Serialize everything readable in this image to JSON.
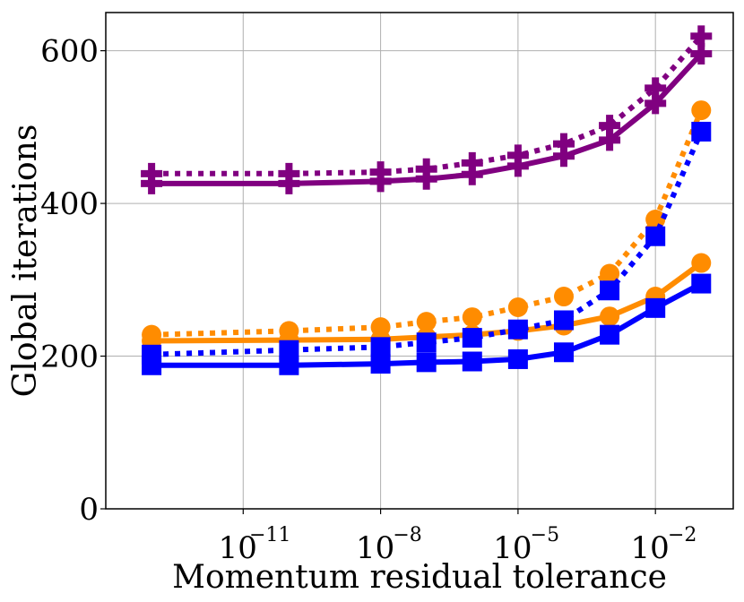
{
  "chart_data": {
    "type": "line",
    "title": "",
    "xlabel": "Momentum residual tolerance",
    "ylabel": "Global iterations",
    "x_scale": "log",
    "xlim": [
      1e-14,
      0.5
    ],
    "ylim": [
      0,
      650
    ],
    "grid": true,
    "x_ticks": [
      {
        "value": 1e-11,
        "base": "10",
        "exp": "−11"
      },
      {
        "value": 1e-08,
        "base": "10",
        "exp": "−8"
      },
      {
        "value": 1e-05,
        "base": "10",
        "exp": "−5"
      },
      {
        "value": 0.01,
        "base": "10",
        "exp": "−2"
      }
    ],
    "y_ticks": [
      "0",
      "200",
      "400",
      "600"
    ],
    "x": [
      1e-13,
      1e-10,
      1e-08,
      1e-07,
      1e-06,
      1e-05,
      0.0001,
      0.001,
      0.01,
      0.1
    ],
    "series": [
      {
        "color": "#800080",
        "style": "solid",
        "marker": "plus",
        "values": [
          426,
          426,
          429,
          432,
          438,
          449,
          462,
          483,
          531,
          596
        ]
      },
      {
        "color": "#800080",
        "style": "dotted",
        "marker": "plus",
        "values": [
          439,
          439,
          441,
          445,
          453,
          463,
          478,
          502,
          551,
          619
        ]
      },
      {
        "color": "#ff8c00",
        "style": "solid",
        "marker": "circle",
        "values": [
          220,
          221,
          222,
          225,
          228,
          233,
          240,
          252,
          278,
          322
        ]
      },
      {
        "color": "#ff8c00",
        "style": "dotted",
        "marker": "circle",
        "values": [
          228,
          233,
          238,
          245,
          251,
          264,
          278,
          308,
          379,
          522
        ]
      },
      {
        "color": "#0000ff",
        "style": "solid",
        "marker": "square",
        "values": [
          188,
          188,
          190,
          192,
          193,
          196,
          205,
          228,
          263,
          295
        ]
      },
      {
        "color": "#0000ff",
        "style": "dotted",
        "marker": "square",
        "values": [
          202,
          208,
          212,
          218,
          224,
          235,
          247,
          286,
          357,
          494
        ]
      }
    ]
  }
}
